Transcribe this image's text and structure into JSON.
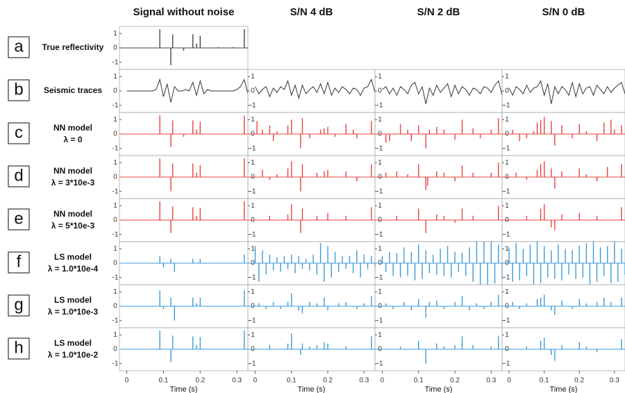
{
  "chart_data": {
    "type": "panel-grid",
    "columns": [
      "Signal without noise",
      "S/N 4 dB",
      "S/N 2 dB",
      "S/N 0 dB"
    ],
    "xlabel": "Time (s)",
    "xlim": [
      -0.02,
      0.33
    ],
    "xticks": [
      0,
      0.1,
      0.2,
      0.3
    ],
    "ylim": [
      -1.5,
      1.5
    ],
    "yticks": [
      -1,
      0,
      1
    ],
    "trace_x": [
      0,
      0.01,
      0.02,
      0.03,
      0.04,
      0.05,
      0.06,
      0.07,
      0.08,
      0.09,
      0.1,
      0.11,
      0.12,
      0.13,
      0.14,
      0.15,
      0.16,
      0.17,
      0.18,
      0.19,
      0.2,
      0.21,
      0.22,
      0.23,
      0.24,
      0.25,
      0.26,
      0.27,
      0.28,
      0.29,
      0.3,
      0.31,
      0.32,
      0.33
    ],
    "rows": [
      {
        "letter": "a",
        "label": "True reflectivity",
        "kind": "stem",
        "color": "#444444",
        "panels": [
          {
            "x": [
              0.09,
              0.12,
              0.125,
              0.155,
              0.18,
              0.19,
              0.2,
              0.25,
              0.29,
              0.32
            ],
            "values": [
              1.3,
              -1.2,
              0.95,
              -0.2,
              0.95,
              0.3,
              0.85,
              0.05,
              0.05,
              1.3
            ]
          }
        ]
      },
      {
        "letter": "b",
        "label": "Seismic traces",
        "kind": "line",
        "color": "#333333",
        "panels": [
          {
            "values": [
              0,
              0,
              0,
              0,
              0,
              0,
              0,
              0,
              0.1,
              0.8,
              -0.4,
              0.5,
              -0.8,
              0.3,
              0,
              0,
              0.1,
              0,
              0.6,
              -0.3,
              0.7,
              -0.2,
              0.1,
              0,
              0,
              0,
              0,
              0,
              0,
              0,
              0.1,
              0.3,
              0.8,
              -0.2
            ]
          },
          {
            "values": [
              0.3,
              -0.2,
              0.1,
              0.3,
              -0.4,
              0.2,
              -0.1,
              0.3,
              0.1,
              0.7,
              -0.3,
              0.4,
              -0.5,
              0.4,
              -0.2,
              0.1,
              0.3,
              -0.1,
              0.5,
              -0.2,
              0.6,
              -0.3,
              0.2,
              -0.1,
              0.3,
              0.1,
              -0.2,
              0.2,
              0.1,
              -0.3,
              0.2,
              0.3,
              0.8,
              -0.1
            ]
          },
          {
            "values": [
              0.1,
              0.3,
              -0.2,
              0.2,
              -0.3,
              0.3,
              0.1,
              -0.2,
              0.4,
              0.6,
              -0.2,
              0.3,
              -0.9,
              0.2,
              -0.3,
              0.4,
              -0.1,
              0.2,
              0.5,
              -0.4,
              0.4,
              -0.2,
              0.3,
              0.1,
              -0.3,
              0.2,
              0.1,
              -0.2,
              0.3,
              0.2,
              -0.1,
              0.4,
              0.7,
              -0.3
            ]
          },
          {
            "values": [
              0.2,
              -0.3,
              0.3,
              0.1,
              -0.2,
              0.4,
              -0.1,
              0.2,
              0.3,
              0.7,
              -0.3,
              0.5,
              -0.9,
              0.3,
              -0.2,
              0.3,
              0.1,
              -0.3,
              0.6,
              -0.4,
              0.5,
              -0.2,
              0.2,
              0.3,
              -0.3,
              0.4,
              0.1,
              -0.2,
              0.3,
              -0.1,
              0.2,
              0.4,
              0.6,
              -0.2
            ]
          }
        ]
      },
      {
        "letter": "c",
        "label": "NN model",
        "label2": "λ = 0",
        "kind": "stem",
        "color": "#e8413c",
        "panels": [
          {
            "x": [
              0.09,
              0.12,
              0.125,
              0.155,
              0.18,
              0.19,
              0.2,
              0.32
            ],
            "values": [
              1.3,
              -0.9,
              0.95,
              -0.2,
              0.95,
              0.3,
              0.85,
              1.3
            ]
          },
          {
            "x": [
              0.005,
              0.02,
              0.04,
              0.05,
              0.06,
              0.09,
              0.1,
              0.125,
              0.13,
              0.15,
              0.18,
              0.19,
              0.2,
              0.22,
              0.25,
              0.27,
              0.28,
              0.32
            ],
            "values": [
              0.9,
              0.3,
              0.6,
              -0.5,
              0.2,
              0.6,
              1.0,
              -1.0,
              1.1,
              -0.3,
              0.3,
              0.4,
              0.5,
              -0.2,
              0.7,
              0.3,
              -0.3,
              0.9
            ]
          },
          {
            "x": [
              0.01,
              0.02,
              0.05,
              0.07,
              0.08,
              0.1,
              0.12,
              0.13,
              0.15,
              0.17,
              0.2,
              0.22,
              0.25,
              0.27,
              0.3,
              0.32
            ],
            "values": [
              -0.6,
              -0.5,
              0.7,
              0.3,
              -0.5,
              0.6,
              -1.0,
              0.3,
              0.5,
              0.3,
              -0.4,
              1.0,
              0.4,
              -0.3,
              0.3,
              1.1
            ]
          },
          {
            "x": [
              0.01,
              0.03,
              0.05,
              0.07,
              0.08,
              0.09,
              0.1,
              0.12,
              0.13,
              0.15,
              0.18,
              0.2,
              0.22,
              0.25,
              0.27,
              0.29,
              0.3,
              0.32
            ],
            "values": [
              0.3,
              -0.5,
              -0.3,
              0.2,
              0.8,
              1.0,
              1.2,
              0.9,
              -0.8,
              0.6,
              -0.3,
              0.7,
              0.2,
              -0.5,
              0.8,
              1.0,
              0.3,
              0.6
            ]
          }
        ]
      },
      {
        "letter": "d",
        "label": "NN model",
        "label2": "λ = 3*10e-3",
        "kind": "stem",
        "color": "#e8413c",
        "panels": [
          {
            "x": [
              0.09,
              0.12,
              0.125,
              0.18,
              0.19,
              0.2,
              0.32
            ],
            "values": [
              1.3,
              -1.0,
              0.95,
              0.95,
              0.3,
              0.85,
              1.3
            ]
          },
          {
            "x": [
              0.02,
              0.04,
              0.06,
              0.09,
              0.1,
              0.125,
              0.13,
              0.17,
              0.19,
              0.2,
              0.25,
              0.28,
              0.32
            ],
            "values": [
              0.5,
              -0.2,
              0.2,
              0.6,
              1.1,
              -1.0,
              0.9,
              0.3,
              0.4,
              0.5,
              0.4,
              -0.3,
              0.9
            ]
          },
          {
            "x": [
              0.01,
              0.04,
              0.07,
              0.1,
              0.12,
              0.125,
              0.15,
              0.17,
              0.2,
              0.22,
              0.25,
              0.3,
              0.32
            ],
            "values": [
              0.3,
              0.4,
              0.2,
              0.9,
              -0.9,
              -0.6,
              0.4,
              0.3,
              -0.3,
              0.8,
              0.3,
              0.3,
              1.0
            ]
          },
          {
            "x": [
              0.02,
              0.05,
              0.08,
              0.09,
              0.1,
              0.12,
              0.13,
              0.15,
              0.2,
              0.22,
              0.25,
              0.28,
              0.32
            ],
            "values": [
              0.3,
              -0.2,
              0.5,
              0.9,
              1.1,
              0.6,
              -0.8,
              0.4,
              0.6,
              0.2,
              -0.3,
              0.7,
              0.9
            ]
          }
        ]
      },
      {
        "letter": "e",
        "label": "NN model",
        "label2": "λ = 5*10e-3",
        "kind": "stem",
        "color": "#e8413c",
        "panels": [
          {
            "x": [
              0.09,
              0.12,
              0.125,
              0.18,
              0.19,
              0.2,
              0.32
            ],
            "values": [
              1.3,
              -0.9,
              0.95,
              0.9,
              0.3,
              0.85,
              1.3
            ]
          },
          {
            "x": [
              0.04,
              0.09,
              0.1,
              0.125,
              0.13,
              0.17,
              0.2,
              0.25,
              0.32
            ],
            "values": [
              0.3,
              0.4,
              1.1,
              -0.9,
              0.8,
              0.3,
              0.5,
              0.3,
              0.9
            ]
          },
          {
            "x": [
              0.04,
              0.1,
              0.12,
              0.15,
              0.17,
              0.2,
              0.22,
              0.25,
              0.32
            ],
            "values": [
              0.3,
              0.8,
              -0.9,
              0.4,
              0.3,
              -0.2,
              0.8,
              0.3,
              1.0
            ]
          },
          {
            "x": [
              0.05,
              0.09,
              0.1,
              0.12,
              0.13,
              0.15,
              0.2,
              0.25,
              0.32
            ],
            "values": [
              0.3,
              0.8,
              1.1,
              -0.5,
              -0.7,
              0.4,
              0.5,
              0.3,
              0.9
            ]
          }
        ]
      },
      {
        "letter": "f",
        "label": "LS model",
        "label2": "λ = 1.0*10e-4",
        "kind": "stem",
        "color": "#3a9ad9",
        "panels": [
          {
            "x": [
              0.09,
              0.1,
              0.12,
              0.13,
              0.18,
              0.2,
              0.32
            ],
            "values": [
              0.5,
              -0.3,
              0.3,
              -0.6,
              0.3,
              0.3,
              0.6
            ]
          },
          {
            "values": [
              1.2,
              -1.3,
              0.9,
              -0.8,
              0.6,
              -0.5,
              0.4,
              -0.6,
              0.5,
              -0.4,
              0.6,
              -0.7,
              0.5,
              -0.4,
              0.3,
              -0.5,
              0.6,
              -0.8,
              1.4,
              -1.3,
              1.2,
              -1.0,
              0.8,
              -0.6,
              0.5,
              -0.4,
              0.5,
              -0.7,
              0.9,
              -1.0,
              0.6,
              -0.4,
              0.5,
              -0.3
            ]
          },
          {
            "values": [
              0.5,
              -0.6,
              0.8,
              -0.9,
              0.7,
              -1.0,
              1.1,
              -0.9,
              0.8,
              -1.2,
              1.3,
              -1.1,
              0.9,
              -0.7,
              0.6,
              -0.8,
              1.0,
              -0.9,
              1.2,
              -1.0,
              0.8,
              -0.6,
              0.7,
              -0.9,
              1.1,
              -1.3,
              1.5,
              -1.5,
              1.5,
              -1.5,
              1.5,
              -1.4,
              1.3,
              -1.1
            ]
          },
          {
            "values": [
              1.1,
              -1.3,
              1.4,
              -1.2,
              1.0,
              -0.9,
              1.3,
              -1.5,
              1.5,
              -1.4,
              1.2,
              -1.0,
              0.9,
              -1.1,
              1.3,
              -1.2,
              1.0,
              -0.8,
              0.9,
              -1.1,
              1.2,
              -1.0,
              1.4,
              -1.5,
              1.5,
              -1.3,
              1.1,
              -0.9,
              1.2,
              -1.4,
              1.5,
              -1.3,
              1.0,
              -0.8
            ]
          }
        ]
      },
      {
        "letter": "g",
        "label": "LS model",
        "label2": "λ = 1.0*10e-3",
        "kind": "stem",
        "color": "#3a9ad9",
        "panels": [
          {
            "x": [
              0.09,
              0.1,
              0.12,
              0.13,
              0.18,
              0.19,
              0.2,
              0.32
            ],
            "values": [
              1.1,
              -0.2,
              0.6,
              -1.0,
              0.6,
              0.2,
              0.6,
              1.1
            ]
          },
          {
            "x": [
              0.01,
              0.03,
              0.05,
              0.07,
              0.09,
              0.1,
              0.12,
              0.13,
              0.15,
              0.17,
              0.19,
              0.2,
              0.23,
              0.25,
              0.28,
              0.3,
              0.32
            ],
            "values": [
              0.2,
              -0.2,
              0.3,
              -0.2,
              0.3,
              0.9,
              -0.3,
              -0.5,
              0.3,
              0.2,
              0.6,
              -0.3,
              0.2,
              0.3,
              -0.2,
              0.2,
              0.7
            ]
          },
          {
            "x": [
              0.01,
              0.03,
              0.06,
              0.08,
              0.1,
              0.12,
              0.13,
              0.15,
              0.17,
              0.2,
              0.22,
              0.24,
              0.26,
              0.28,
              0.3,
              0.32
            ],
            "values": [
              0.2,
              -0.2,
              0.3,
              -0.3,
              0.5,
              -0.8,
              0.3,
              0.4,
              -0.2,
              0.3,
              0.7,
              -0.3,
              0.2,
              -0.2,
              0.3,
              0.8
            ]
          },
          {
            "x": [
              0.01,
              0.03,
              0.05,
              0.08,
              0.09,
              0.1,
              0.12,
              0.13,
              0.15,
              0.18,
              0.2,
              0.22,
              0.25,
              0.27,
              0.29,
              0.32
            ],
            "values": [
              0.3,
              -0.2,
              0.2,
              0.5,
              0.6,
              0.8,
              -0.3,
              -0.6,
              0.4,
              -0.2,
              0.5,
              0.2,
              0.3,
              0.6,
              0.3,
              0.6
            ]
          }
        ]
      },
      {
        "letter": "h",
        "label": "LS model",
        "label2": "λ = 1.0*10e-2",
        "kind": "stem",
        "color": "#3a9ad9",
        "panels": [
          {
            "x": [
              0.09,
              0.12,
              0.125,
              0.18,
              0.19,
              0.2,
              0.32
            ],
            "values": [
              1.3,
              -0.9,
              0.95,
              0.9,
              0.3,
              0.85,
              1.3
            ]
          },
          {
            "x": [
              0.04,
              0.09,
              0.1,
              0.125,
              0.13,
              0.15,
              0.17,
              0.19,
              0.2,
              0.25,
              0.32
            ],
            "values": [
              0.3,
              0.4,
              1.1,
              -0.4,
              0.4,
              0.2,
              0.3,
              0.5,
              0.4,
              0.2,
              0.9
            ]
          },
          {
            "x": [
              0.05,
              0.1,
              0.12,
              0.15,
              0.17,
              0.2,
              0.22,
              0.25,
              0.3,
              0.32
            ],
            "values": [
              0.2,
              0.6,
              -1.0,
              0.4,
              0.2,
              0.3,
              0.9,
              0.3,
              0.2,
              0.9
            ]
          },
          {
            "x": [
              0.05,
              0.09,
              0.1,
              0.12,
              0.13,
              0.15,
              0.2,
              0.22,
              0.25,
              0.32
            ],
            "values": [
              0.2,
              0.6,
              0.8,
              -0.4,
              -0.8,
              0.3,
              0.5,
              0.2,
              -0.2,
              0.7
            ]
          }
        ]
      }
    ]
  }
}
